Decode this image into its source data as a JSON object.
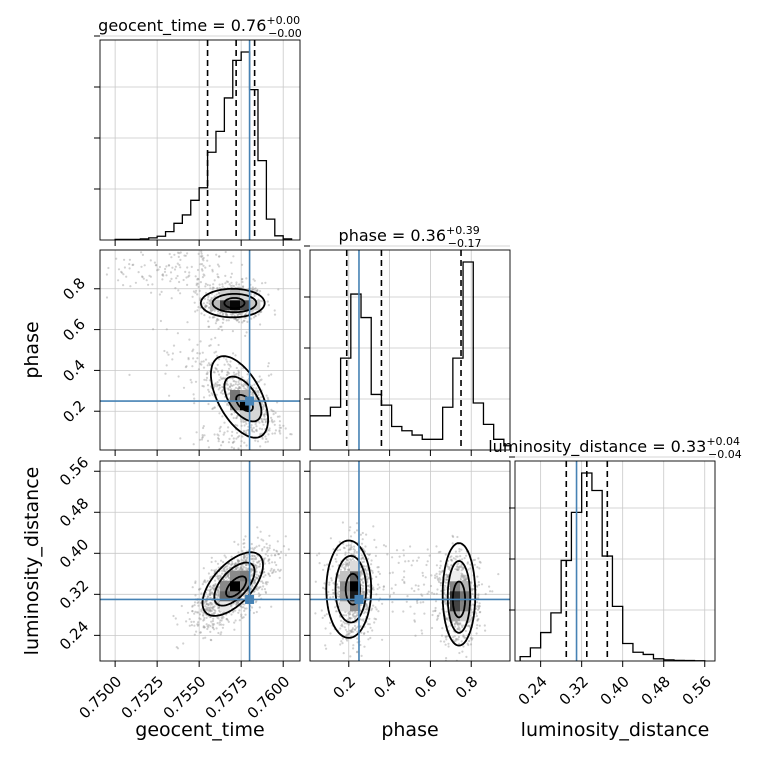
{
  "chart_data": {
    "type": "corner",
    "parameters": [
      "geocent_time",
      "phase",
      "luminosity_distance"
    ],
    "titles": [
      {
        "param": "geocent_time",
        "prefix": "geocent_time = ",
        "value": "0.76",
        "plus": "+0.00",
        "minus": "−0.00"
      },
      {
        "param": "phase",
        "prefix": "phase = ",
        "value": "0.36",
        "plus": "+0.39",
        "minus": "−0.17"
      },
      {
        "param": "luminosity_distance",
        "prefix": "luminosity_distance = ",
        "value": "0.33",
        "plus": "+0.04",
        "minus": "−0.04"
      }
    ],
    "ranges": {
      "geocent_time": [
        0.7491,
        0.761
      ],
      "phase": [
        0.01,
        0.99
      ],
      "luminosity_distance": [
        0.19,
        0.58
      ]
    },
    "ticks": {
      "geocent_time": [
        {
          "v": 0.75,
          "label": "0.7500"
        },
        {
          "v": 0.7525,
          "label": "0.7525"
        },
        {
          "v": 0.755,
          "label": "0.7550"
        },
        {
          "v": 0.7575,
          "label": "0.7575"
        },
        {
          "v": 0.76,
          "label": "0.7600"
        }
      ],
      "phase": [
        {
          "v": 0.2,
          "label": "0.2"
        },
        {
          "v": 0.4,
          "label": "0.4"
        },
        {
          "v": 0.6,
          "label": "0.6"
        },
        {
          "v": 0.8,
          "label": "0.8"
        }
      ],
      "luminosity_distance": [
        {
          "v": 0.24,
          "label": "0.24"
        },
        {
          "v": 0.32,
          "label": "0.32"
        },
        {
          "v": 0.4,
          "label": "0.40"
        },
        {
          "v": 0.48,
          "label": "0.48"
        },
        {
          "v": 0.56,
          "label": "0.56"
        }
      ]
    },
    "truths": {
      "geocent_time": 0.758,
      "phase": 0.25,
      "luminosity_distance": 0.31
    },
    "quantiles": {
      "geocent_time": [
        0.7555,
        0.7572,
        0.7583
      ],
      "phase": [
        0.19,
        0.36,
        0.75
      ],
      "luminosity_distance": [
        0.29,
        0.33,
        0.37
      ]
    },
    "histograms": {
      "geocent_time": {
        "edges": [
          0.75,
          0.7505,
          0.751,
          0.7515,
          0.752,
          0.7525,
          0.753,
          0.7535,
          0.754,
          0.7545,
          0.755,
          0.7555,
          0.756,
          0.7565,
          0.757,
          0.7575,
          0.758,
          0.7585,
          0.759,
          0.7595,
          0.76,
          0.7605
        ],
        "counts": [
          0.003,
          0.003,
          0.003,
          0.005,
          0.01,
          0.018,
          0.04,
          0.08,
          0.12,
          0.19,
          0.25,
          0.42,
          0.52,
          0.68,
          0.86,
          0.9,
          0.72,
          0.38,
          0.1,
          0.02,
          0.005
        ]
      },
      "phase": {
        "edges": [
          0.01,
          0.06,
          0.11,
          0.16,
          0.21,
          0.26,
          0.31,
          0.36,
          0.41,
          0.46,
          0.51,
          0.56,
          0.61,
          0.66,
          0.71,
          0.76,
          0.81,
          0.86,
          0.91,
          0.96,
          0.99
        ],
        "counts": [
          0.16,
          0.16,
          0.2,
          0.43,
          0.73,
          0.62,
          0.26,
          0.21,
          0.11,
          0.09,
          0.07,
          0.05,
          0.05,
          0.2,
          0.43,
          0.88,
          0.22,
          0.12,
          0.05,
          0.02
        ]
      },
      "luminosity_distance": {
        "edges": [
          0.2,
          0.22,
          0.24,
          0.26,
          0.28,
          0.3,
          0.32,
          0.34,
          0.36,
          0.38,
          0.4,
          0.42,
          0.44,
          0.46,
          0.48,
          0.5,
          0.52,
          0.54,
          0.56
        ],
        "counts": [
          0.02,
          0.06,
          0.13,
          0.22,
          0.46,
          0.68,
          0.86,
          0.78,
          0.48,
          0.25,
          0.08,
          0.04,
          0.03,
          0.01,
          0.005,
          0.003,
          0.002,
          0.001
        ]
      }
    },
    "scatter_clouds": {
      "phase_vs_geocent_time": [
        {
          "mx": 0.757,
          "my": 0.73,
          "sx": 0.0009,
          "sy": 0.05,
          "rho": 0.0,
          "n": 550
        },
        {
          "mx": 0.7578,
          "my": 0.24,
          "sx": 0.0009,
          "sy": 0.08,
          "rho": -0.6,
          "n": 500
        },
        {
          "mx": 0.754,
          "my": 0.9,
          "sx": 0.0022,
          "sy": 0.06,
          "rho": 0.0,
          "n": 160
        },
        {
          "mx": 0.756,
          "my": 0.4,
          "sx": 0.0016,
          "sy": 0.1,
          "rho": -0.5,
          "n": 130
        },
        {
          "mx": 0.757,
          "my": 0.08,
          "sx": 0.0014,
          "sy": 0.04,
          "rho": 0.4,
          "n": 90
        }
      ],
      "luminosity_distance_vs_geocent_time": [
        {
          "mx": 0.757,
          "my": 0.335,
          "sx": 0.0011,
          "sy": 0.037,
          "rho": 0.6,
          "n": 1300
        }
      ],
      "luminosity_distance_vs_phase": [
        {
          "mx": 0.22,
          "my": 0.325,
          "sx": 0.055,
          "sy": 0.045,
          "rho": 0.0,
          "n": 700
        },
        {
          "mx": 0.74,
          "my": 0.31,
          "sx": 0.05,
          "sy": 0.045,
          "rho": 0.0,
          "n": 650
        },
        {
          "mx": 0.45,
          "my": 0.34,
          "sx": 0.2,
          "sy": 0.04,
          "rho": 0.0,
          "n": 150
        }
      ]
    },
    "density_blobs": {
      "phase_vs_geocent_time": [
        {
          "mx": 0.7571,
          "my": 0.73,
          "sx": 0.0009,
          "sy": 0.03,
          "rho": 0.0,
          "w": 1.0
        },
        {
          "mx": 0.7576,
          "my": 0.24,
          "sx": 0.00055,
          "sy": 0.045,
          "rho": -0.55,
          "w": 1.0
        }
      ],
      "luminosity_distance_vs_geocent_time": [
        {
          "mx": 0.7571,
          "my": 0.335,
          "sx": 0.0007,
          "sy": 0.024,
          "rho": 0.6,
          "w": 1.0
        }
      ],
      "luminosity_distance_vs_phase": [
        {
          "mx": 0.22,
          "my": 0.33,
          "sx": 0.035,
          "sy": 0.03,
          "rho": 0.0,
          "w": 1.0
        },
        {
          "mx": 0.74,
          "my": 0.31,
          "sx": 0.03,
          "sy": 0.03,
          "rho": 0.0,
          "w": 1.0
        }
      ]
    },
    "contours": {
      "phase_vs_geocent_time": [
        [
          {
            "mx": 0.7571,
            "my": 0.73,
            "rx": 0.0006,
            "ry": 0.025,
            "rho": 0.0
          },
          {
            "mx": 0.7571,
            "my": 0.73,
            "rx": 0.0013,
            "ry": 0.045,
            "rho": 0.0
          },
          {
            "mx": 0.757,
            "my": 0.73,
            "rx": 0.0019,
            "ry": 0.07,
            "rho": 0.0
          }
        ],
        [
          {
            "mx": 0.7577,
            "my": 0.24,
            "rx": 0.0005,
            "ry": 0.04,
            "rho": -0.5
          },
          {
            "mx": 0.7576,
            "my": 0.26,
            "rx": 0.0011,
            "ry": 0.11,
            "rho": -0.55
          },
          {
            "mx": 0.7574,
            "my": 0.27,
            "rx": 0.0017,
            "ry": 0.2,
            "rho": -0.55
          }
        ]
      ],
      "luminosity_distance_vs_geocent_time": [
        [
          {
            "mx": 0.7572,
            "my": 0.335,
            "rx": 0.0006,
            "ry": 0.02,
            "rho": 0.6
          },
          {
            "mx": 0.7571,
            "my": 0.34,
            "rx": 0.0012,
            "ry": 0.042,
            "rho": 0.6
          },
          {
            "mx": 0.757,
            "my": 0.34,
            "rx": 0.0018,
            "ry": 0.062,
            "rho": 0.6
          }
        ]
      ],
      "luminosity_distance_vs_phase": [
        [
          {
            "mx": 0.22,
            "my": 0.33,
            "rx": 0.035,
            "ry": 0.03,
            "rho": 0.0
          },
          {
            "mx": 0.21,
            "my": 0.33,
            "rx": 0.075,
            "ry": 0.065,
            "rho": 0.0
          },
          {
            "mx": 0.2,
            "my": 0.33,
            "rx": 0.11,
            "ry": 0.095,
            "rho": 0.0
          }
        ],
        [
          {
            "mx": 0.74,
            "my": 0.31,
            "rx": 0.03,
            "ry": 0.035,
            "rho": 0.0
          },
          {
            "mx": 0.74,
            "my": 0.315,
            "rx": 0.055,
            "ry": 0.07,
            "rho": 0.0
          },
          {
            "mx": 0.74,
            "my": 0.32,
            "rx": 0.08,
            "ry": 0.1,
            "rho": 0.0
          }
        ]
      ]
    },
    "colors": {
      "truth": "#4682b4",
      "hist": "#000000",
      "grid": "#c8c8c8",
      "points": "#9a9a9a"
    }
  }
}
